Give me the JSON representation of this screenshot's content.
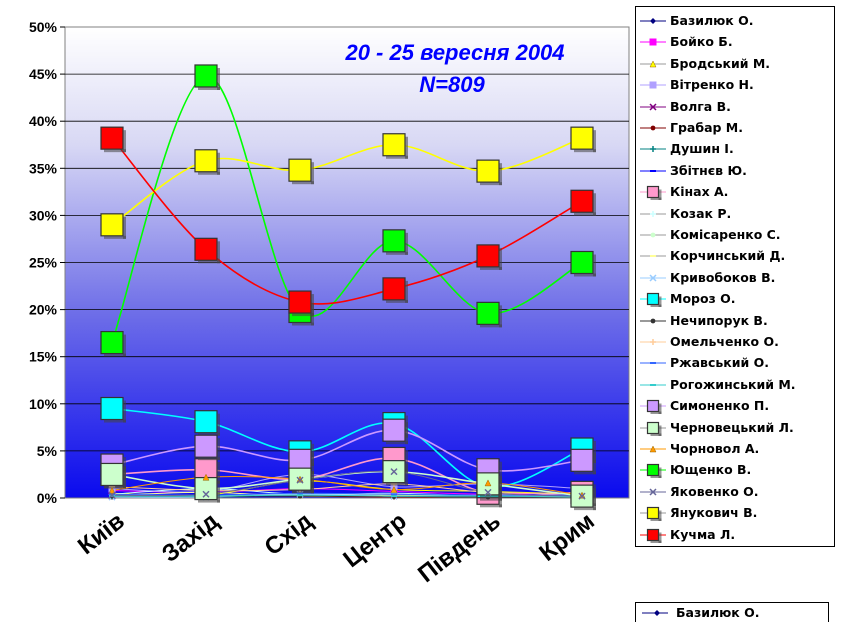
{
  "chart_data": {
    "type": "line",
    "title": "20 - 25 вересня 2004",
    "subtitle": "N=809",
    "categories": [
      "Київ",
      "Захід",
      "Схід",
      "Центр",
      "Південь",
      "Крим"
    ],
    "ylim": [
      0,
      50
    ],
    "y_ticks": [
      "0%",
      "5%",
      "10%",
      "15%",
      "20%",
      "25%",
      "30%",
      "35%",
      "40%",
      "45%",
      "50%"
    ],
    "grid": true,
    "legend_position": "right",
    "series": [
      {
        "name": "Базилюк О.",
        "color": "#000080",
        "marker": "diamond",
        "size": "small",
        "values": [
          0.3,
          0.2,
          0.3,
          0.2,
          0.1,
          0.1
        ]
      },
      {
        "name": "Бойко Б.",
        "color": "#ff00ff",
        "marker": "square",
        "size": "small",
        "values": [
          0.8,
          0.6,
          1.0,
          0.7,
          0.4,
          0.6
        ]
      },
      {
        "name": "Бродський М.",
        "color": "#ffff00",
        "marker": "triangle",
        "size": "small",
        "values": [
          0.5,
          0.3,
          1.8,
          0.9,
          0.7,
          0.4
        ]
      },
      {
        "name": "Вітренко Н.",
        "color": "#b0a0ff",
        "marker": "square",
        "size": "small",
        "values": [
          1.0,
          0.7,
          2.5,
          1.2,
          1.5,
          1.0
        ]
      },
      {
        "name": "Волга В.",
        "color": "#800080",
        "marker": "x",
        "size": "small",
        "values": [
          0.2,
          0.2,
          0.4,
          0.2,
          0.2,
          0.1
        ]
      },
      {
        "name": "Грабар М.",
        "color": "#800000",
        "marker": "circle",
        "size": "small",
        "values": [
          0.1,
          0.2,
          0.2,
          0.1,
          0.1,
          0.1
        ]
      },
      {
        "name": "Душин І.",
        "color": "#008080",
        "marker": "plus",
        "size": "small",
        "values": [
          0.2,
          0.1,
          0.3,
          0.2,
          0.1,
          0.2
        ]
      },
      {
        "name": "Збітнєв Ю.",
        "color": "#0000ff",
        "marker": "dash",
        "size": "small",
        "values": [
          0.4,
          0.3,
          0.5,
          0.3,
          0.3,
          0.2
        ]
      },
      {
        "name": "Кінах А.",
        "color": "#ff99cc",
        "marker": "square",
        "size": "big",
        "values": [
          2.5,
          3.0,
          2.0,
          4.2,
          0.5,
          0.6
        ]
      },
      {
        "name": "Козак Р.",
        "color": "#ccffff",
        "marker": "plus",
        "size": "small",
        "values": [
          0.4,
          1.0,
          0.4,
          0.5,
          0.2,
          0.2
        ]
      },
      {
        "name": "Комісаренко С.",
        "color": "#ccffcc",
        "marker": "circle",
        "size": "small",
        "values": [
          0.3,
          0.3,
          0.4,
          0.3,
          0.2,
          0.2
        ]
      },
      {
        "name": "Корчинський Д.",
        "color": "#ffff99",
        "marker": "dash",
        "size": "small",
        "values": [
          0.3,
          0.6,
          0.2,
          0.3,
          0.2,
          0.2
        ]
      },
      {
        "name": "Кривобоков В.",
        "color": "#99ccff",
        "marker": "x",
        "size": "small",
        "values": [
          0.1,
          0.1,
          0.4,
          0.2,
          0.3,
          0.2
        ]
      },
      {
        "name": "Мороз О.",
        "color": "#00ffff",
        "marker": "square",
        "size": "big",
        "values": [
          9.5,
          8.1,
          4.9,
          7.9,
          1.2,
          5.2
        ]
      },
      {
        "name": "Нечипорук В.",
        "color": "#333333",
        "marker": "circle",
        "size": "small",
        "values": [
          0.2,
          0.2,
          0.2,
          0.2,
          0.1,
          0.1
        ]
      },
      {
        "name": "Омельченко О.",
        "color": "#ffcc99",
        "marker": "plus",
        "size": "small",
        "values": [
          1.2,
          0.8,
          0.9,
          1.5,
          0.6,
          0.5
        ]
      },
      {
        "name": "Ржавський О.",
        "color": "#3366ff",
        "marker": "dash",
        "size": "small",
        "values": [
          0.4,
          0.3,
          0.5,
          0.4,
          0.3,
          0.3
        ]
      },
      {
        "name": "Рогожинський М.",
        "color": "#33cccc",
        "marker": "dash",
        "size": "small",
        "values": [
          0.2,
          0.2,
          0.3,
          0.2,
          0.2,
          0.1
        ]
      },
      {
        "name": "Симоненко П.",
        "color": "#cc99ff",
        "marker": "square",
        "size": "big",
        "values": [
          3.5,
          5.5,
          4.0,
          7.2,
          3.0,
          4.0
        ]
      },
      {
        "name": "Черновецький Л.",
        "color": "#ccffcc",
        "marker": "square",
        "size": "big",
        "values": [
          2.5,
          1.0,
          2.0,
          2.8,
          1.5,
          0.2
        ]
      },
      {
        "name": "Чорновол А.",
        "color": "#ff9900",
        "marker": "triangle",
        "size": "small",
        "values": [
          0.8,
          2.2,
          2.0,
          0.9,
          1.6,
          0.3
        ]
      },
      {
        "name": "Ющенко В.",
        "color": "#00ff00",
        "marker": "square",
        "size": "big",
        "values": [
          16.5,
          44.8,
          19.8,
          27.3,
          19.6,
          25.0
        ]
      },
      {
        "name": "Яковенко О.",
        "color": "#666699",
        "marker": "x",
        "size": "small",
        "values": [
          0.3,
          0.4,
          1.9,
          2.8,
          0.6,
          0.2
        ]
      },
      {
        "name": "Янукович В.",
        "color": "#ffff00",
        "marker": "square",
        "size": "big",
        "values": [
          29.0,
          35.8,
          34.8,
          37.5,
          34.7,
          38.2
        ]
      },
      {
        "name": "Кучма Л.",
        "color": "#ff0000",
        "marker": "square",
        "size": "big",
        "values": [
          38.2,
          26.4,
          20.8,
          22.2,
          25.7,
          31.5
        ]
      }
    ],
    "legend2_label": "Базилюк О.",
    "legend2_color": "#000080"
  }
}
